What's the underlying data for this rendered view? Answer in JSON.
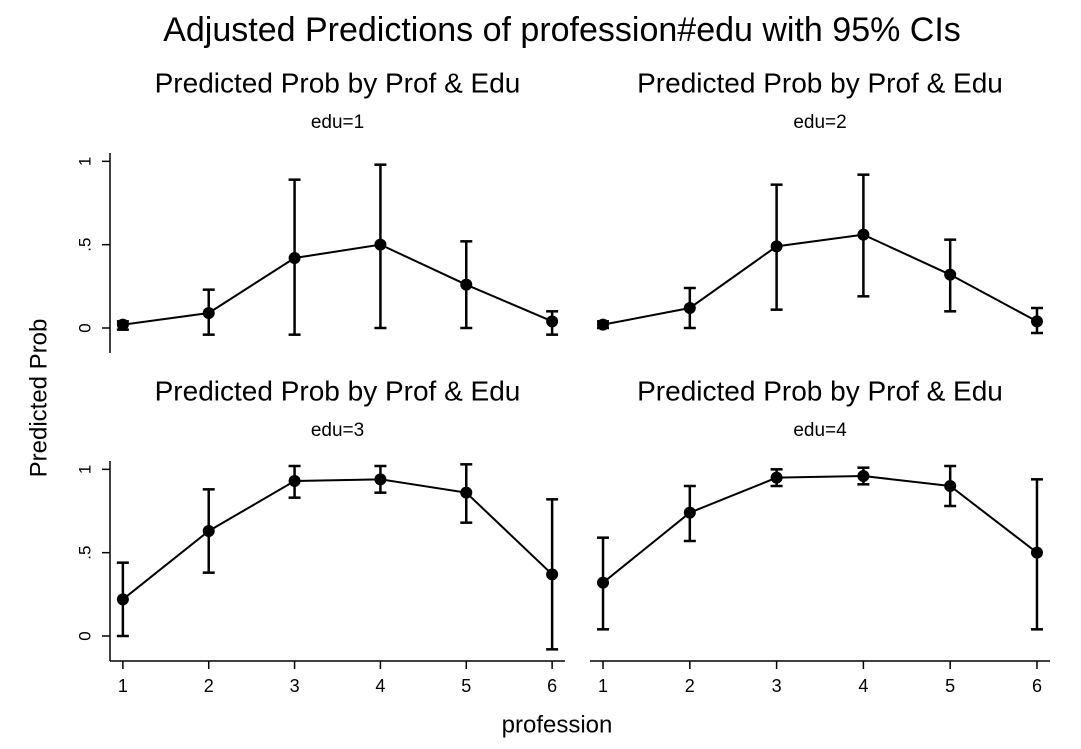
{
  "title": "Adjusted Predictions of profession#edu with 95% CIs",
  "x_label": "profession",
  "y_label": "Predicted Prob",
  "chart_data": [
    {
      "type": "line",
      "title": "Predicted Prob by Prof & Edu",
      "subtitle": "edu=1",
      "x": [
        1,
        2,
        3,
        4,
        5,
        6
      ],
      "values": [
        0.02,
        0.09,
        0.42,
        0.5,
        0.26,
        0.04
      ],
      "lower": [
        -0.01,
        -0.04,
        -0.04,
        0.0,
        0.0,
        -0.04
      ],
      "upper": [
        0.04,
        0.23,
        0.89,
        0.98,
        0.52,
        0.1
      ],
      "xlim": [
        0.85,
        6.15
      ],
      "ylim": [
        -0.15,
        1.05
      ],
      "yticks": [
        0,
        {
          "value": 0.5,
          "label": ".5"
        },
        1
      ],
      "color": "#000000"
    },
    {
      "type": "line",
      "title": "Predicted Prob by Prof & Edu",
      "subtitle": "edu=2",
      "x": [
        1,
        2,
        3,
        4,
        5,
        6
      ],
      "values": [
        0.02,
        0.12,
        0.49,
        0.56,
        0.32,
        0.04
      ],
      "lower": [
        0.0,
        0.0,
        0.11,
        0.19,
        0.1,
        -0.03
      ],
      "upper": [
        0.04,
        0.24,
        0.86,
        0.92,
        0.53,
        0.12
      ],
      "xlim": [
        0.85,
        6.15
      ],
      "ylim": [
        -0.15,
        1.05
      ],
      "color": "#000000"
    },
    {
      "type": "line",
      "title": "Predicted Prob by Prof & Edu",
      "subtitle": "edu=3",
      "x": [
        1,
        2,
        3,
        4,
        5,
        6
      ],
      "values": [
        0.22,
        0.63,
        0.93,
        0.94,
        0.86,
        0.37
      ],
      "lower": [
        0.0,
        0.38,
        0.83,
        0.86,
        0.68,
        -0.08
      ],
      "upper": [
        0.44,
        0.88,
        1.02,
        1.02,
        1.03,
        0.82
      ],
      "xlim": [
        0.85,
        6.15
      ],
      "ylim": [
        -0.15,
        1.05
      ],
      "xticks": [
        1,
        2,
        3,
        4,
        5,
        6
      ],
      "yticks": [
        0,
        {
          "value": 0.5,
          "label": ".5"
        },
        1
      ],
      "color": "#000000"
    },
    {
      "type": "line",
      "title": "Predicted Prob by Prof & Edu",
      "subtitle": "edu=4",
      "x": [
        1,
        2,
        3,
        4,
        5,
        6
      ],
      "values": [
        0.32,
        0.74,
        0.95,
        0.96,
        0.9,
        0.5
      ],
      "lower": [
        0.04,
        0.57,
        0.9,
        0.91,
        0.78,
        0.04
      ],
      "upper": [
        0.59,
        0.9,
        1.0,
        1.01,
        1.02,
        0.94
      ],
      "xlim": [
        0.85,
        6.15
      ],
      "ylim": [
        -0.15,
        1.05
      ],
      "xticks": [
        1,
        2,
        3,
        4,
        5,
        6
      ],
      "color": "#000000"
    }
  ]
}
